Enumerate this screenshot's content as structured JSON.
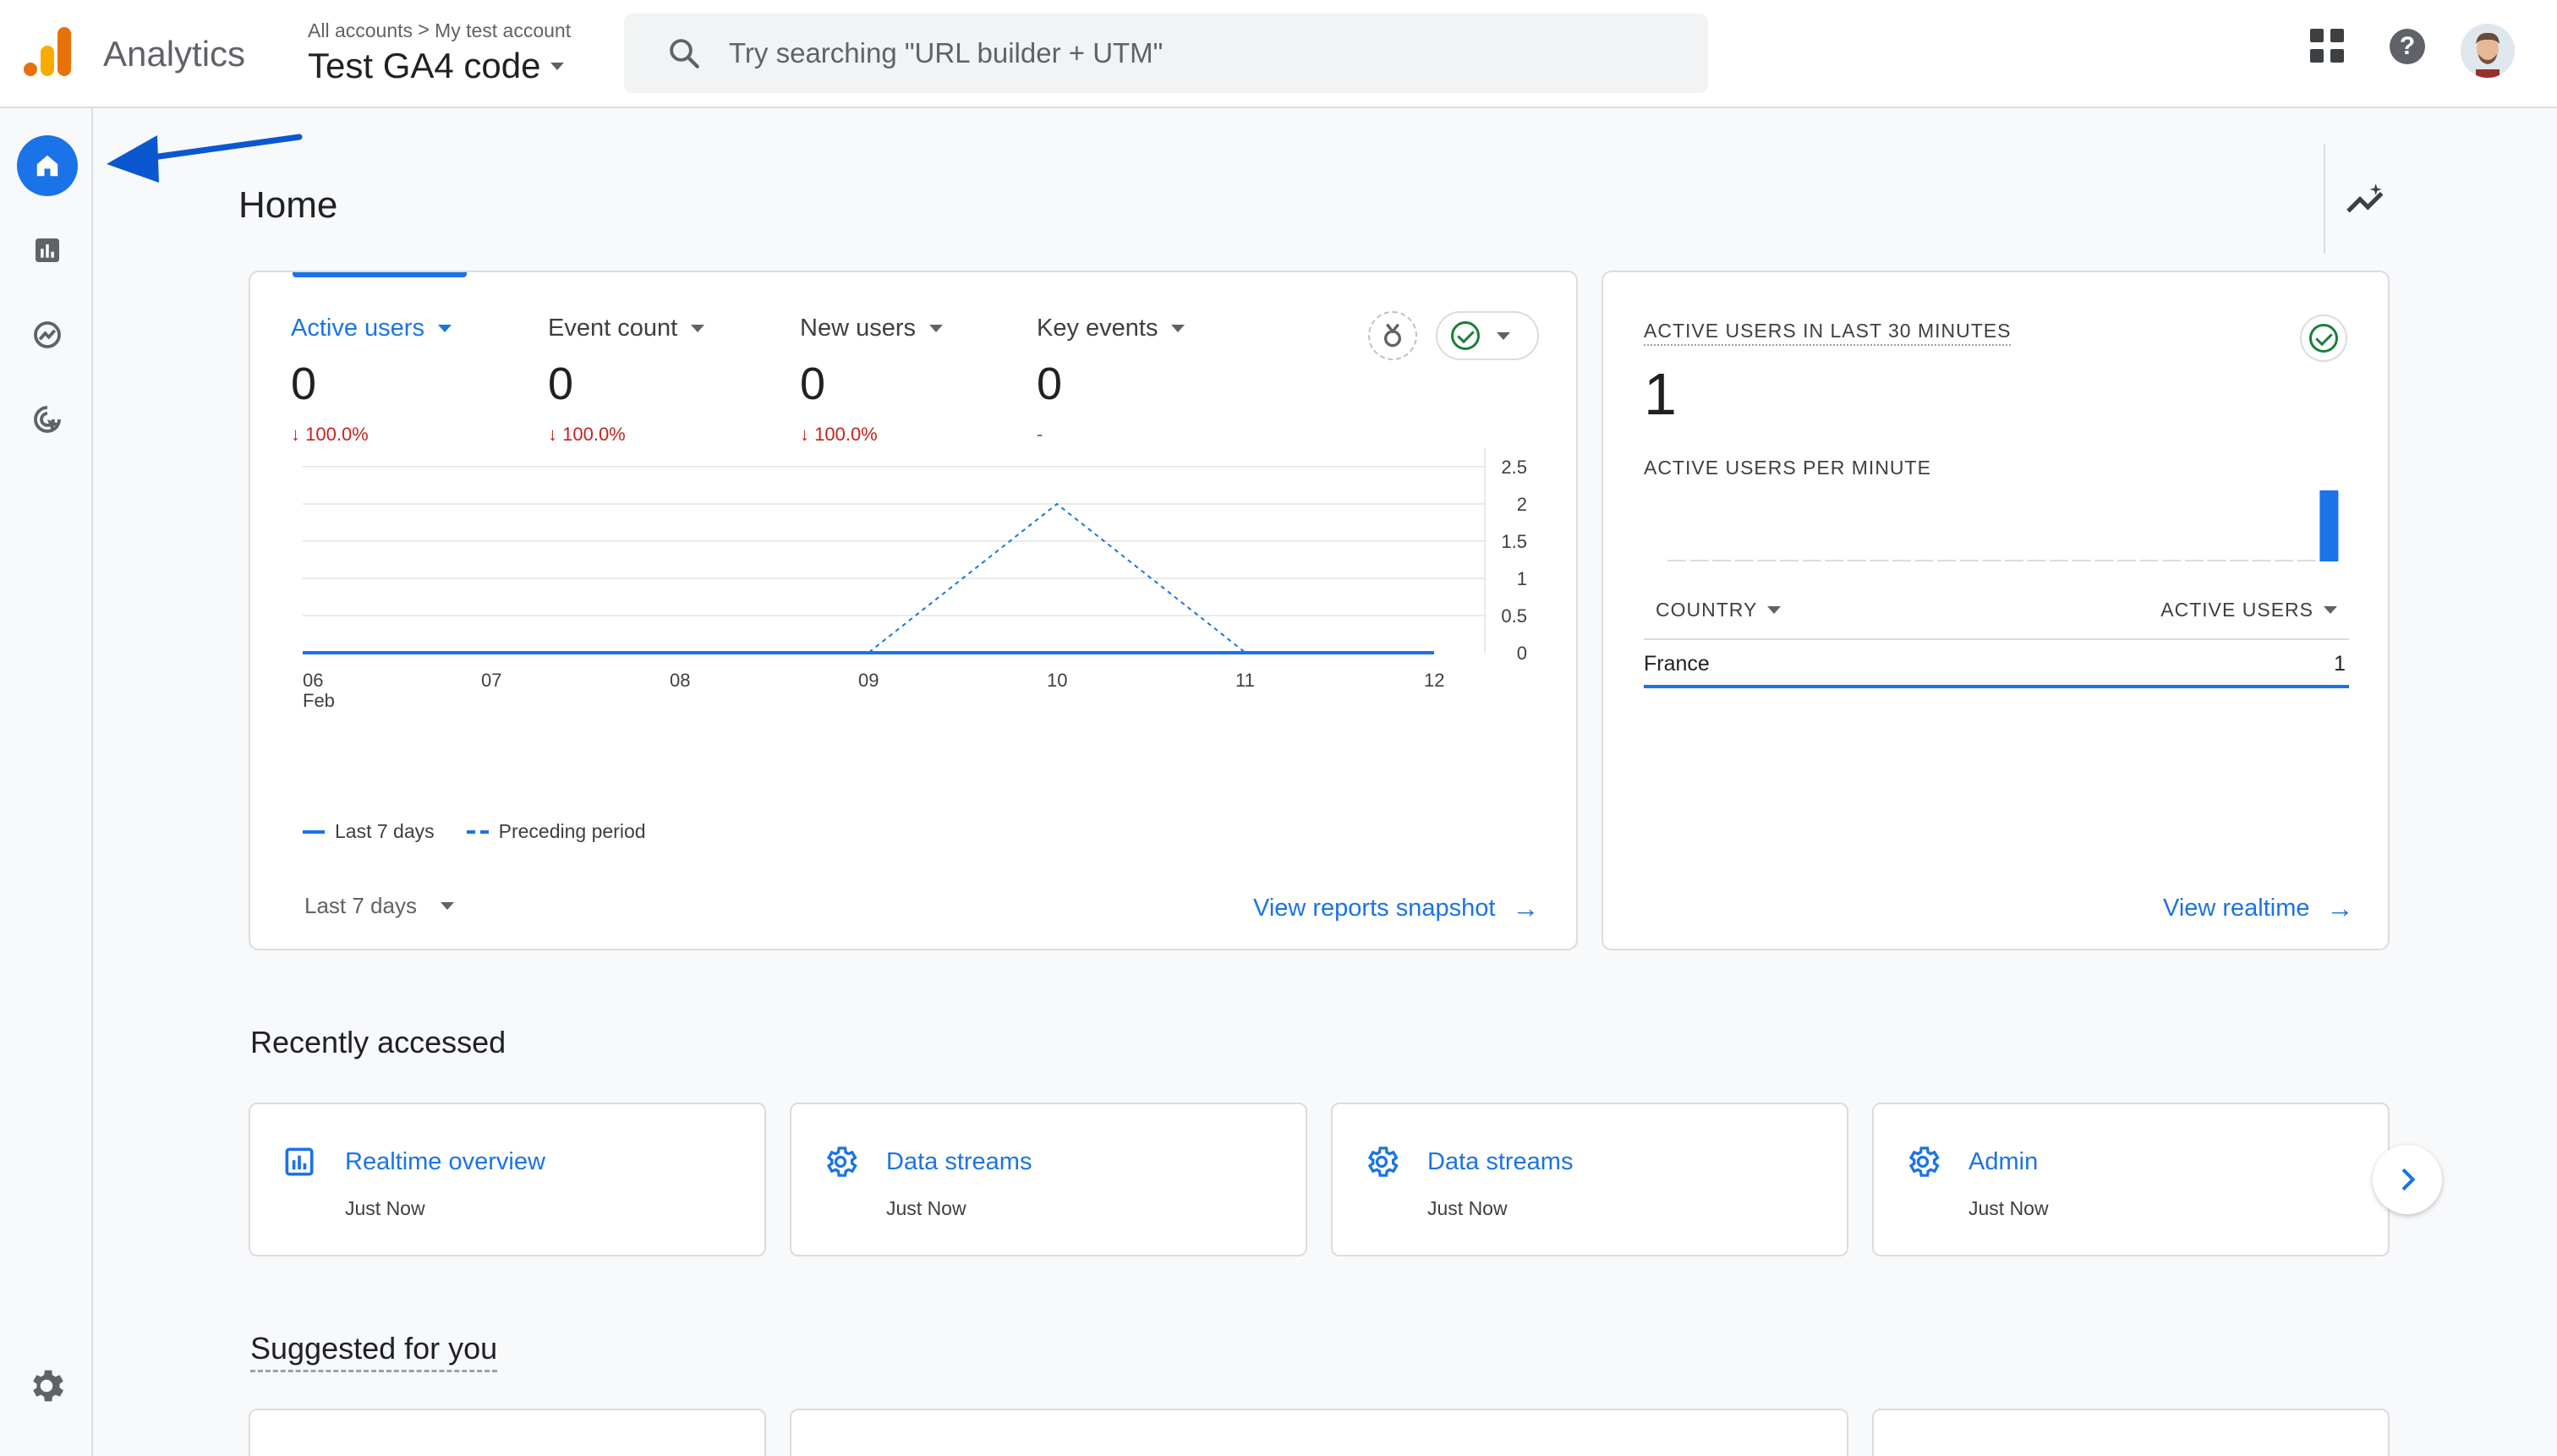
{
  "header": {
    "app_name": "Analytics",
    "crumb_all": "All accounts",
    "crumb_sep": ">",
    "crumb_account": "My test account",
    "property": "Test GA4 code",
    "search_placeholder": "Try searching \"URL builder + UTM\""
  },
  "nav": {
    "items": [
      "home-icon",
      "reports-icon",
      "explore-icon",
      "advertising-icon"
    ],
    "active": "home-icon",
    "settings": "settings-icon"
  },
  "page": {
    "title": "Home"
  },
  "metrics": [
    {
      "label": "Active users",
      "value": "0",
      "change": "100.0%",
      "arrow": "↓"
    },
    {
      "label": "Event count",
      "value": "0",
      "change": "100.0%",
      "arrow": "↓"
    },
    {
      "label": "New users",
      "value": "0",
      "change": "100.0%",
      "arrow": "↓"
    },
    {
      "label": "Key events",
      "value": "0",
      "change": "-"
    }
  ],
  "chart_data": {
    "type": "line",
    "x": [
      "06",
      "07",
      "08",
      "09",
      "10",
      "11",
      "12"
    ],
    "x_sublabel_first": "Feb",
    "y_ticks": [
      "2.5",
      "2",
      "1.5",
      "1",
      "0.5",
      "0"
    ],
    "ylim": [
      0,
      2.5
    ],
    "series": [
      {
        "name": "Last 7 days",
        "style": "solid",
        "values": [
          0,
          0,
          0,
          0,
          0,
          0,
          0
        ]
      },
      {
        "name": "Preceding period",
        "style": "dashed",
        "values": [
          0,
          0,
          0,
          0,
          2,
          0,
          0
        ]
      }
    ],
    "grid": true
  },
  "main_card": {
    "range_label": "Last 7 days",
    "link": "View reports snapshot",
    "link_arrow": "→"
  },
  "realtime": {
    "title": "ACTIVE USERS IN LAST 30 MINUTES",
    "value": "1",
    "per_minute_label": "ACTIVE USERS PER MINUTE",
    "per_minute_values": [
      0,
      0,
      0,
      0,
      0,
      0,
      0,
      0,
      0,
      0,
      0,
      0,
      0,
      0,
      0,
      0,
      0,
      0,
      0,
      0,
      0,
      0,
      0,
      0,
      0,
      0,
      0,
      0,
      0,
      1
    ],
    "col_country": "COUNTRY",
    "col_users": "ACTIVE USERS",
    "rows": [
      {
        "country": "France",
        "users": "1"
      }
    ],
    "link": "View realtime",
    "link_arrow": "→"
  },
  "recent": {
    "title": "Recently accessed",
    "items": [
      {
        "label": "Realtime overview",
        "time": "Just Now",
        "icon": "reports-icon"
      },
      {
        "label": "Data streams",
        "time": "Just Now",
        "icon": "gear-icon"
      },
      {
        "label": "Data streams",
        "time": "Just Now",
        "icon": "gear-icon"
      },
      {
        "label": "Admin",
        "time": "Just Now",
        "icon": "gear-icon"
      }
    ]
  },
  "suggested": {
    "title": "Suggested for you"
  },
  "colors": {
    "accent": "#1a73e8",
    "negative": "#c5221f",
    "positive": "#188038"
  }
}
